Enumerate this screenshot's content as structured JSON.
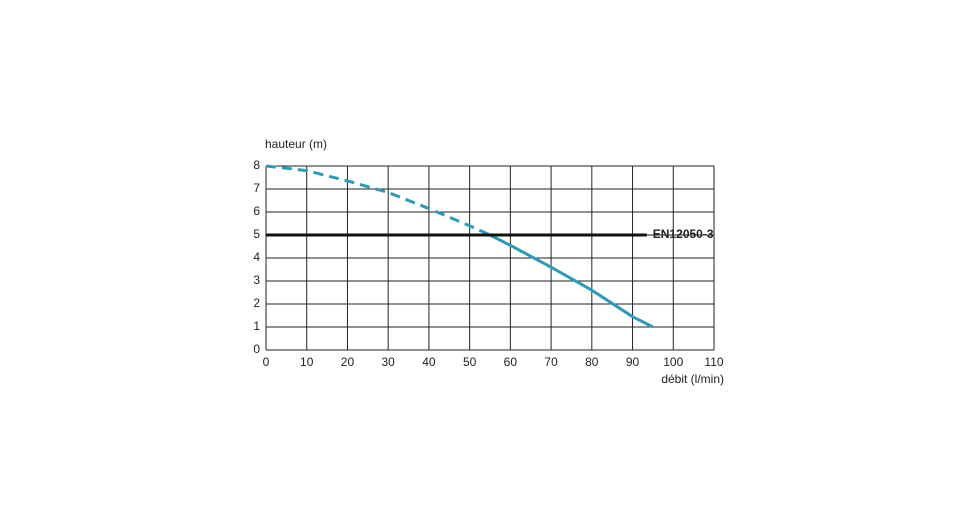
{
  "chart_data": {
    "type": "line",
    "x_label": "débit (l/min)",
    "y_label": "hauteur (m)",
    "xlim": [
      0,
      110
    ],
    "ylim": [
      0,
      8
    ],
    "xticks": [
      0,
      10,
      20,
      30,
      40,
      50,
      60,
      70,
      80,
      90,
      100,
      110
    ],
    "yticks": [
      0,
      1,
      2,
      3,
      4,
      5,
      6,
      7,
      8
    ],
    "grid": true,
    "series": [
      {
        "color": "#2a9bb8",
        "style": "dashed",
        "x": [
          0,
          10,
          20,
          30,
          40,
          50,
          55
        ],
        "values": [
          8,
          7.8,
          7.35,
          6.85,
          6.15,
          5.4,
          5.0
        ]
      },
      {
        "color": "#2a9bb8",
        "style": "solid",
        "x": [
          55,
          60,
          70,
          80,
          90,
          95
        ],
        "values": [
          5.0,
          4.55,
          3.6,
          2.6,
          1.45,
          1.0
        ]
      },
      {
        "name": "EN12050-3",
        "color": "#111111",
        "label_color": "#2a9bb8",
        "style": "solid",
        "x": [
          0,
          93.5
        ],
        "values": [
          5,
          5
        ]
      }
    ]
  }
}
